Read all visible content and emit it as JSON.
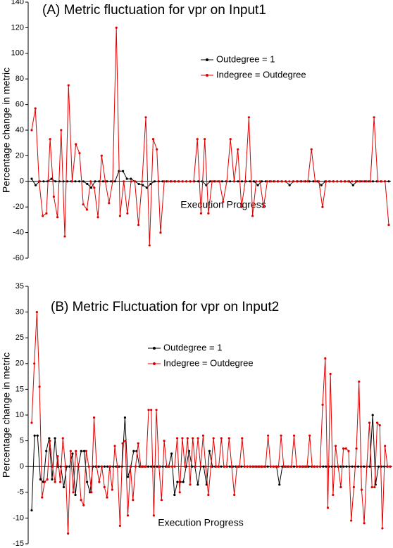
{
  "chart_data": [
    {
      "type": "line",
      "title": "(A) Metric fluctuation for vpr on Input1",
      "y_label": "Percentage change in metric",
      "x_label": "Execution Progress",
      "ylim": [
        -60,
        140
      ],
      "yticks": [
        -60,
        -40,
        -20,
        0,
        20,
        40,
        60,
        80,
        100,
        120,
        140
      ],
      "legend": "upper right",
      "series": [
        {
          "name": "Outdegree = 1",
          "color": "#000000",
          "values": [
            2,
            -3,
            0,
            0,
            0,
            2,
            0,
            0,
            0,
            0,
            0,
            0,
            0,
            0,
            -2,
            -5,
            0,
            0,
            0,
            0,
            0,
            0,
            8,
            8,
            2,
            2,
            0,
            -2,
            -3,
            -5,
            -2,
            0,
            0,
            0,
            0,
            0,
            0,
            0,
            0,
            0,
            0,
            0,
            0,
            0,
            -3,
            0,
            0,
            0,
            0,
            0,
            0,
            0,
            0,
            0,
            0,
            0,
            0,
            -3,
            0,
            0,
            0,
            0,
            0,
            0,
            0,
            -3,
            0,
            0,
            0,
            0,
            0,
            0,
            0,
            -3,
            0,
            0,
            0,
            0,
            0,
            0,
            0,
            -3,
            0,
            0,
            0,
            0,
            0,
            0,
            0,
            0,
            0
          ]
        },
        {
          "name": "Indegree = Outdegree",
          "color": "#e00000",
          "values": [
            40,
            57,
            0,
            -27,
            -25,
            33,
            -12,
            -28,
            40,
            -43,
            75,
            0,
            29,
            22,
            -18,
            -22,
            0,
            -5,
            -28,
            20,
            0,
            -17,
            0,
            120,
            -27,
            0,
            -25,
            0,
            0,
            -34,
            0,
            50,
            -50,
            33,
            25,
            -40,
            0,
            0,
            0,
            0,
            0,
            0,
            0,
            0,
            0,
            33,
            -25,
            33,
            -25,
            0,
            0,
            0,
            -16,
            0,
            33,
            0,
            25,
            -20,
            0,
            50,
            -27,
            0,
            0,
            -20,
            0,
            0,
            0,
            0,
            0,
            0,
            0,
            0,
            0,
            0,
            0,
            0,
            25,
            0,
            0,
            -20,
            0,
            0,
            0,
            0,
            0,
            0,
            0,
            0,
            0,
            0,
            0,
            0,
            0,
            50,
            0,
            0,
            0,
            -34
          ]
        }
      ]
    },
    {
      "type": "line",
      "title": "(B) Metric Fluctuation for vpr on Input2",
      "y_label": "Percentage change in metric",
      "x_label": "Execution Progress",
      "ylim": [
        -15,
        35
      ],
      "yticks": [
        -15,
        -10,
        -5,
        0,
        5,
        10,
        15,
        20,
        25,
        30,
        35
      ],
      "legend": "upper center",
      "series": [
        {
          "name": "Outdegree = 1",
          "color": "#000000",
          "values": [
            -8.5,
            6,
            6,
            -2.5,
            -3,
            3,
            5.5,
            -2.5,
            5.5,
            0,
            0,
            -4,
            0,
            0,
            2.5,
            -5.5,
            0,
            3,
            3,
            -3,
            -5,
            0,
            0,
            0,
            0,
            0,
            0,
            0,
            0,
            0,
            0,
            0,
            9.5,
            -2,
            0,
            3,
            3,
            0,
            0,
            0,
            0,
            0,
            0,
            0,
            0,
            0,
            0,
            0,
            2.5,
            -5.5,
            -3,
            -3,
            -3,
            0,
            3,
            0,
            0,
            -3.5,
            0,
            0,
            -3.5,
            3,
            0,
            0,
            0,
            0,
            0,
            0,
            0,
            0,
            0,
            0,
            0,
            0,
            0,
            0,
            0,
            0,
            0,
            0,
            0,
            0,
            0,
            0,
            0,
            -3.5,
            0,
            0,
            0,
            0,
            0,
            0,
            0,
            0,
            0,
            0,
            0,
            0,
            0,
            0,
            0,
            0,
            0,
            0,
            0,
            0,
            0,
            0,
            0,
            0,
            0,
            0,
            0,
            0,
            0,
            0,
            0,
            10,
            -3.5,
            0,
            0,
            0,
            0,
            0
          ]
        },
        {
          "name": "Indegree = Outdegree",
          "color": "#e00000",
          "values": [
            8.5,
            20,
            30,
            15.5,
            -6,
            -3,
            -2.5,
            5,
            0,
            -3,
            2,
            -3,
            5.5,
            0,
            -13,
            3,
            -5,
            3,
            0,
            -6.5,
            -7.5,
            3,
            0,
            -5,
            9.5,
            0,
            -3,
            0,
            -4,
            -6,
            0,
            -4.5,
            4,
            0,
            -11.5,
            4.5,
            5,
            -9.5,
            0,
            -6.5,
            0,
            4.5,
            0,
            0,
            0,
            11,
            11,
            -9.5,
            11,
            0,
            -6.5,
            5,
            0,
            0,
            0,
            0,
            5.5,
            -5,
            5.5,
            0,
            5.5,
            -3.5,
            5.5,
            0,
            5.5,
            0,
            6,
            0,
            -5.5,
            0,
            5.5,
            0,
            0,
            5.5,
            0,
            0,
            5.5,
            0,
            -5.5,
            0,
            0,
            5.5,
            0,
            0,
            0,
            0,
            0,
            0,
            0,
            0,
            0,
            6,
            0,
            0,
            0,
            0,
            6,
            0,
            0,
            0,
            0,
            6,
            0,
            0,
            0,
            0,
            0,
            6,
            0,
            0,
            0,
            0,
            12,
            21,
            -8,
            18,
            -5.5,
            4,
            0,
            -4,
            3.5,
            3.5,
            3,
            -10.5,
            -4,
            3.5,
            16.5,
            -4.5,
            -11,
            0,
            8.5,
            -4,
            -4,
            8.5,
            8,
            -12,
            4,
            0,
            0
          ]
        }
      ]
    }
  ]
}
